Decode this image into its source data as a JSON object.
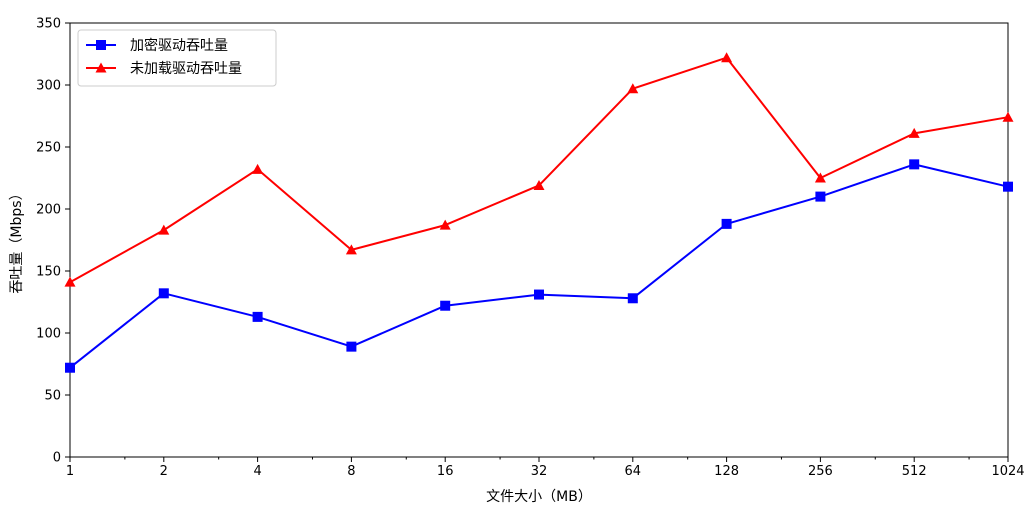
{
  "chart_data": {
    "type": "line",
    "title": "",
    "xlabel": "文件大小（MB）",
    "ylabel": "吞吐量（Mbps）",
    "x_scale": "log2",
    "categories": [
      "1",
      "2",
      "4",
      "8",
      "16",
      "32",
      "64",
      "128",
      "256",
      "512",
      "1024"
    ],
    "x": [
      1,
      2,
      4,
      8,
      16,
      32,
      64,
      128,
      256,
      512,
      1024
    ],
    "xlim": [
      1,
      1024
    ],
    "ylim": [
      0,
      350
    ],
    "yticks": [
      0,
      50,
      100,
      150,
      200,
      250,
      300,
      350
    ],
    "grid": false,
    "legend_position": "upper-left",
    "series": [
      {
        "name": "加密驱动吞吐量",
        "color": "#0000ff",
        "marker": "square",
        "values": [
          72,
          132,
          113,
          89,
          122,
          131,
          128,
          188,
          210,
          236,
          218
        ]
      },
      {
        "name": "未加载驱动吞吐量",
        "color": "#ff0000",
        "marker": "triangle",
        "values": [
          141,
          183,
          232,
          167,
          187,
          219,
          297,
          322,
          225,
          261,
          274
        ]
      }
    ]
  }
}
